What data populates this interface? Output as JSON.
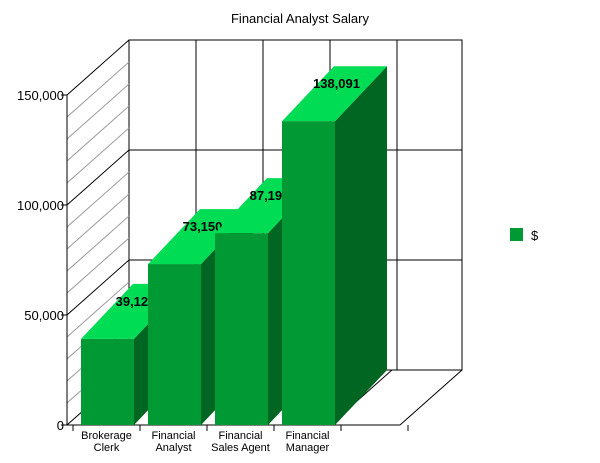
{
  "chart_data": {
    "type": "bar",
    "title": "Financial Analyst Salary",
    "categories": [
      [
        "Brokerage",
        "Clerk"
      ],
      [
        "Financial",
        "Analyst"
      ],
      [
        "Financial",
        "Sales Agent"
      ],
      [
        "Financial",
        "Manager"
      ]
    ],
    "series": [
      {
        "name": "$",
        "values": [
          39124,
          73150,
          87193,
          138091
        ]
      }
    ],
    "data_labels": [
      "39,124",
      "73,150",
      "87,193",
      "138,091"
    ],
    "ylim": [
      0,
      150000
    ],
    "yticks": [
      0,
      50000,
      100000,
      150000
    ],
    "ytick_labels": [
      "0",
      "50,000",
      "100,000",
      "150,000"
    ],
    "grid": true,
    "style": "3d",
    "legend": "right",
    "colors": {
      "front": "#009933",
      "side": "#006622",
      "top": "#00dd55"
    }
  }
}
